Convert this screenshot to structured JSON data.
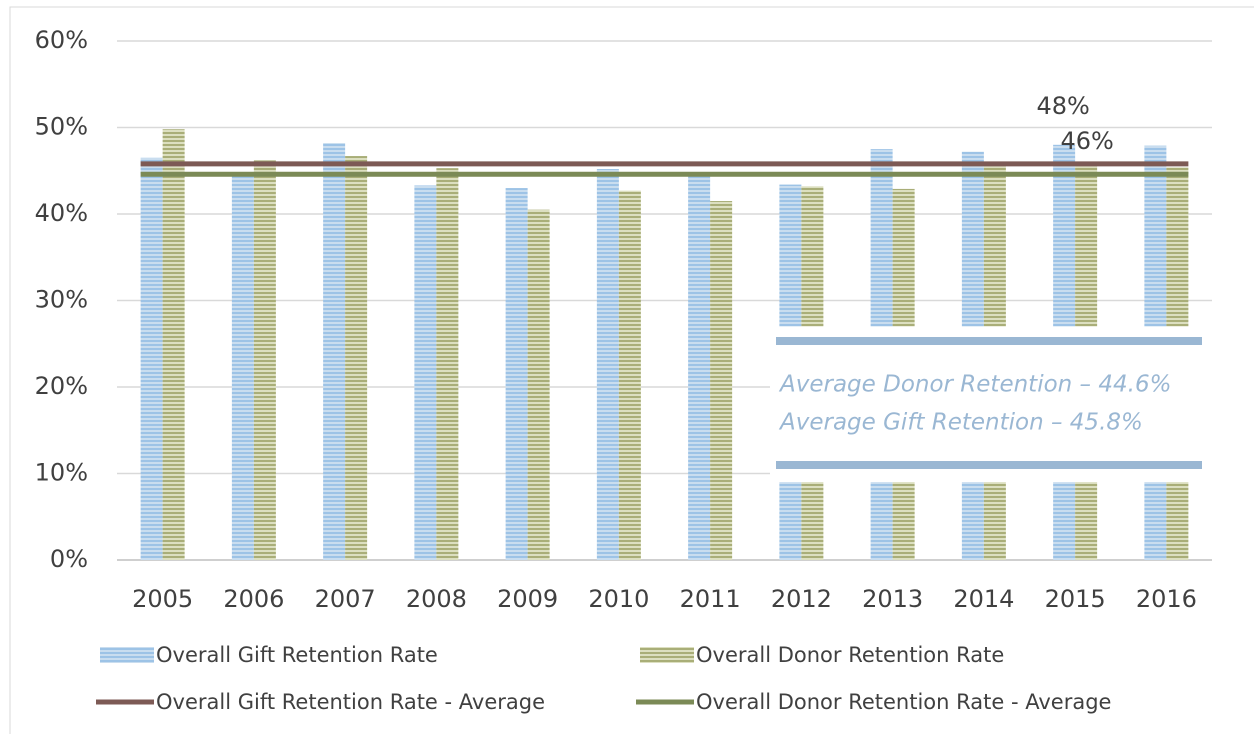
{
  "chart_data": {
    "type": "bar",
    "categories": [
      "2005",
      "2006",
      "2007",
      "2008",
      "2009",
      "2010",
      "2011",
      "2012",
      "2013",
      "2014",
      "2015",
      "2016"
    ],
    "series": [
      {
        "name": "Overall Gift Retention Rate",
        "color": "#9dc3e6",
        "values": [
          46.5,
          44.8,
          48.2,
          43.3,
          43.0,
          45.2,
          44.8,
          43.4,
          47.5,
          47.2,
          48.0,
          47.9
        ],
        "value_labels": [
          null,
          null,
          null,
          null,
          null,
          null,
          null,
          null,
          null,
          null,
          "48%",
          null
        ]
      },
      {
        "name": "Overall Donor Retention Rate",
        "color": "#c4c89a",
        "values": [
          49.8,
          46.2,
          46.7,
          45.3,
          40.5,
          42.7,
          41.5,
          43.2,
          42.9,
          45.8,
          46.0,
          45.4
        ],
        "value_labels": [
          null,
          null,
          null,
          null,
          null,
          null,
          null,
          null,
          null,
          null,
          "46%",
          null
        ]
      }
    ],
    "averages": [
      {
        "name": "Overall Gift Retention Rate - Average",
        "color": "#7d5a55",
        "value": 45.8
      },
      {
        "name": "Overall Donor Retention Rate - Average",
        "color": "#7b8a56",
        "value": 44.6
      }
    ],
    "annotations": [
      "Average Donor Retention – 44.6%",
      "Average Gift Retention – 45.8%"
    ],
    "ylim": [
      0,
      60
    ],
    "yticks": [
      {
        "value": 0,
        "label": "0%"
      },
      {
        "value": 10,
        "label": "10%"
      },
      {
        "value": 20,
        "label": "20%"
      },
      {
        "value": 30,
        "label": "30%"
      },
      {
        "value": 40,
        "label": "40%"
      },
      {
        "value": 50,
        "label": "50%"
      },
      {
        "value": 60,
        "label": "60%"
      }
    ],
    "grid": true
  }
}
